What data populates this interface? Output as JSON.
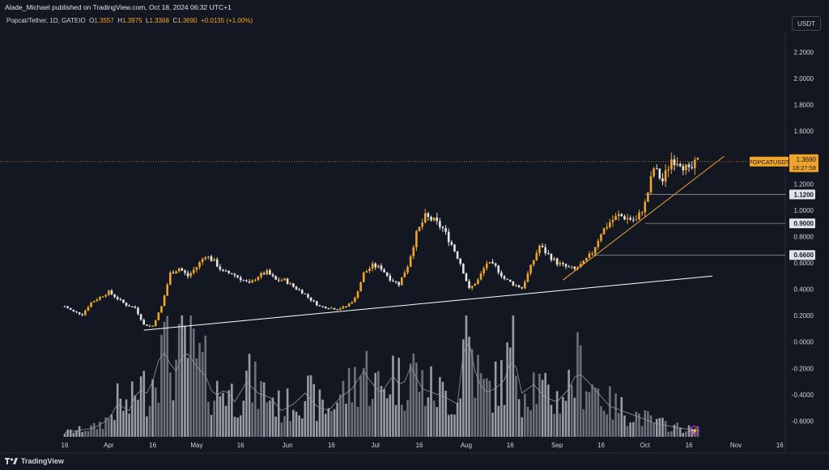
{
  "header": {
    "text": "Alade_Michael published on TradingView.com, Oct 18, 2024 06:32 UTC+1"
  },
  "legend": {
    "symbol": "Popcat/Tether, 1D, GATEIO",
    "open_label": "O",
    "open": "1.3557",
    "high_label": "H",
    "high": "1.3975",
    "low_label": "L",
    "low": "1.3368",
    "close_label": "C",
    "close": "1.3690",
    "change": "+0.0135 (+1.00%)"
  },
  "currency": "USDT",
  "footer": {
    "brand": "TradingView",
    "logo": "tradingview-logo"
  },
  "colors": {
    "up": "#f0a52a",
    "down": "#e6e6e6",
    "bg": "#131722",
    "grid": "#1e222d",
    "trend": "#f0a52a",
    "support": "#ffffff"
  },
  "chart_data": {
    "type": "candlestick",
    "symbol": "POPCATUSDT",
    "ylim": [
      -0.72,
      2.35
    ],
    "y_ticks": [
      "2.2000",
      "2.0000",
      "1.8000",
      "1.6000",
      "1.4000",
      "1.2000",
      "1.0000",
      "0.8000",
      "0.6000",
      "0.4000",
      "0.2000",
      "0.0000",
      "-0.2000",
      "-0.4000",
      "-0.6000"
    ],
    "y_tick_values": [
      2.2,
      2.0,
      1.8,
      1.6,
      1.4,
      1.2,
      1.0,
      0.8,
      0.6,
      0.4,
      0.2,
      0.0,
      -0.2,
      -0.4,
      -0.6
    ],
    "x_ticks": [
      "16",
      "Apr",
      "16",
      "May",
      "16",
      "Jun",
      "16",
      "Jul",
      "16",
      "Aug",
      "16",
      "Sep",
      "16",
      "Oct",
      "16",
      "Nov",
      "16"
    ],
    "x_tick_days": [
      0,
      15,
      30,
      45,
      60,
      76,
      91,
      106,
      121,
      137,
      152,
      168,
      183,
      198,
      213,
      229,
      244
    ],
    "last_price": {
      "label": "POPCATUSDT",
      "value": "1.3690",
      "countdown": "18:27:58"
    },
    "horizontal_levels": [
      {
        "value": 1.12,
        "label": "1.1200",
        "start_day": 198
      },
      {
        "value": 0.9,
        "label": "0.9000",
        "start_day": 198
      },
      {
        "value": 0.66,
        "label": "0.6600",
        "start_day": 180
      }
    ],
    "trendlines": [
      {
        "name": "support",
        "from": {
          "day": 27,
          "price": 0.09
        },
        "to": {
          "day": 221,
          "price": 0.5
        }
      },
      {
        "name": "rising",
        "from": {
          "day": 170,
          "price": 0.47
        },
        "to": {
          "day": 225,
          "price": 1.41
        }
      }
    ],
    "price_path": [
      [
        0,
        0.27
      ],
      [
        3,
        0.23
      ],
      [
        6,
        0.21
      ],
      [
        9,
        0.3
      ],
      [
        12,
        0.34
      ],
      [
        15,
        0.38
      ],
      [
        18,
        0.33
      ],
      [
        21,
        0.28
      ],
      [
        24,
        0.26
      ],
      [
        27,
        0.13
      ],
      [
        30,
        0.12
      ],
      [
        33,
        0.27
      ],
      [
        36,
        0.52
      ],
      [
        39,
        0.56
      ],
      [
        42,
        0.5
      ],
      [
        45,
        0.57
      ],
      [
        48,
        0.66
      ],
      [
        51,
        0.61
      ],
      [
        54,
        0.53
      ],
      [
        57,
        0.52
      ],
      [
        60,
        0.48
      ],
      [
        63,
        0.44
      ],
      [
        66,
        0.5
      ],
      [
        69,
        0.53
      ],
      [
        72,
        0.47
      ],
      [
        75,
        0.47
      ],
      [
        78,
        0.42
      ],
      [
        81,
        0.38
      ],
      [
        84,
        0.32
      ],
      [
        87,
        0.27
      ],
      [
        90,
        0.26
      ],
      [
        93,
        0.25
      ],
      [
        96,
        0.27
      ],
      [
        99,
        0.33
      ],
      [
        102,
        0.52
      ],
      [
        105,
        0.58
      ],
      [
        108,
        0.56
      ],
      [
        111,
        0.48
      ],
      [
        114,
        0.44
      ],
      [
        117,
        0.58
      ],
      [
        120,
        0.82
      ],
      [
        123,
        0.95
      ],
      [
        126,
        0.92
      ],
      [
        129,
        0.86
      ],
      [
        132,
        0.74
      ],
      [
        135,
        0.6
      ],
      [
        138,
        0.4
      ],
      [
        141,
        0.47
      ],
      [
        144,
        0.6
      ],
      [
        147,
        0.57
      ],
      [
        150,
        0.48
      ],
      [
        153,
        0.44
      ],
      [
        156,
        0.41
      ],
      [
        159,
        0.57
      ],
      [
        162,
        0.73
      ],
      [
        165,
        0.66
      ],
      [
        168,
        0.6
      ],
      [
        171,
        0.57
      ],
      [
        174,
        0.55
      ],
      [
        177,
        0.6
      ],
      [
        180,
        0.68
      ],
      [
        183,
        0.83
      ],
      [
        186,
        0.91
      ],
      [
        189,
        0.96
      ],
      [
        192,
        0.94
      ],
      [
        195,
        0.92
      ],
      [
        198,
        1.05
      ],
      [
        201,
        1.32
      ],
      [
        204,
        1.22
      ],
      [
        207,
        1.39
      ],
      [
        210,
        1.37
      ],
      [
        213,
        1.29
      ],
      [
        216,
        1.37
      ]
    ],
    "volume_pattern": [
      [
        0,
        0.02
      ],
      [
        10,
        0.04
      ],
      [
        15,
        0.08
      ],
      [
        18,
        0.15
      ],
      [
        22,
        0.12
      ],
      [
        25,
        0.22
      ],
      [
        28,
        0.2
      ],
      [
        31,
        0.28
      ],
      [
        33,
        0.42
      ],
      [
        35,
        0.35
      ],
      [
        38,
        0.3
      ],
      [
        41,
        0.4
      ],
      [
        45,
        0.32
      ],
      [
        48,
        0.28
      ],
      [
        51,
        0.18
      ],
      [
        55,
        0.22
      ],
      [
        58,
        0.16
      ],
      [
        62,
        0.25
      ],
      [
        66,
        0.2
      ],
      [
        70,
        0.18
      ],
      [
        74,
        0.12
      ],
      [
        78,
        0.15
      ],
      [
        82,
        0.2
      ],
      [
        86,
        0.14
      ],
      [
        90,
        0.12
      ],
      [
        94,
        0.18
      ],
      [
        98,
        0.22
      ],
      [
        102,
        0.3
      ],
      [
        105,
        0.24
      ],
      [
        108,
        0.2
      ],
      [
        112,
        0.28
      ],
      [
        115,
        0.22
      ],
      [
        118,
        0.32
      ],
      [
        122,
        0.22
      ],
      [
        126,
        0.2
      ],
      [
        130,
        0.18
      ],
      [
        134,
        0.15
      ],
      [
        137,
        0.5
      ],
      [
        140,
        0.3
      ],
      [
        143,
        0.2
      ],
      [
        147,
        0.22
      ],
      [
        150,
        0.26
      ],
      [
        153,
        0.38
      ],
      [
        156,
        0.2
      ],
      [
        160,
        0.24
      ],
      [
        164,
        0.18
      ],
      [
        168,
        0.16
      ],
      [
        172,
        0.22
      ],
      [
        175,
        0.3
      ],
      [
        178,
        0.26
      ],
      [
        182,
        0.2
      ],
      [
        186,
        0.14
      ],
      [
        190,
        0.12
      ],
      [
        194,
        0.1
      ],
      [
        198,
        0.08
      ],
      [
        202,
        0.06
      ],
      [
        206,
        0.05
      ],
      [
        210,
        0.04
      ],
      [
        215,
        0.03
      ]
    ]
  }
}
